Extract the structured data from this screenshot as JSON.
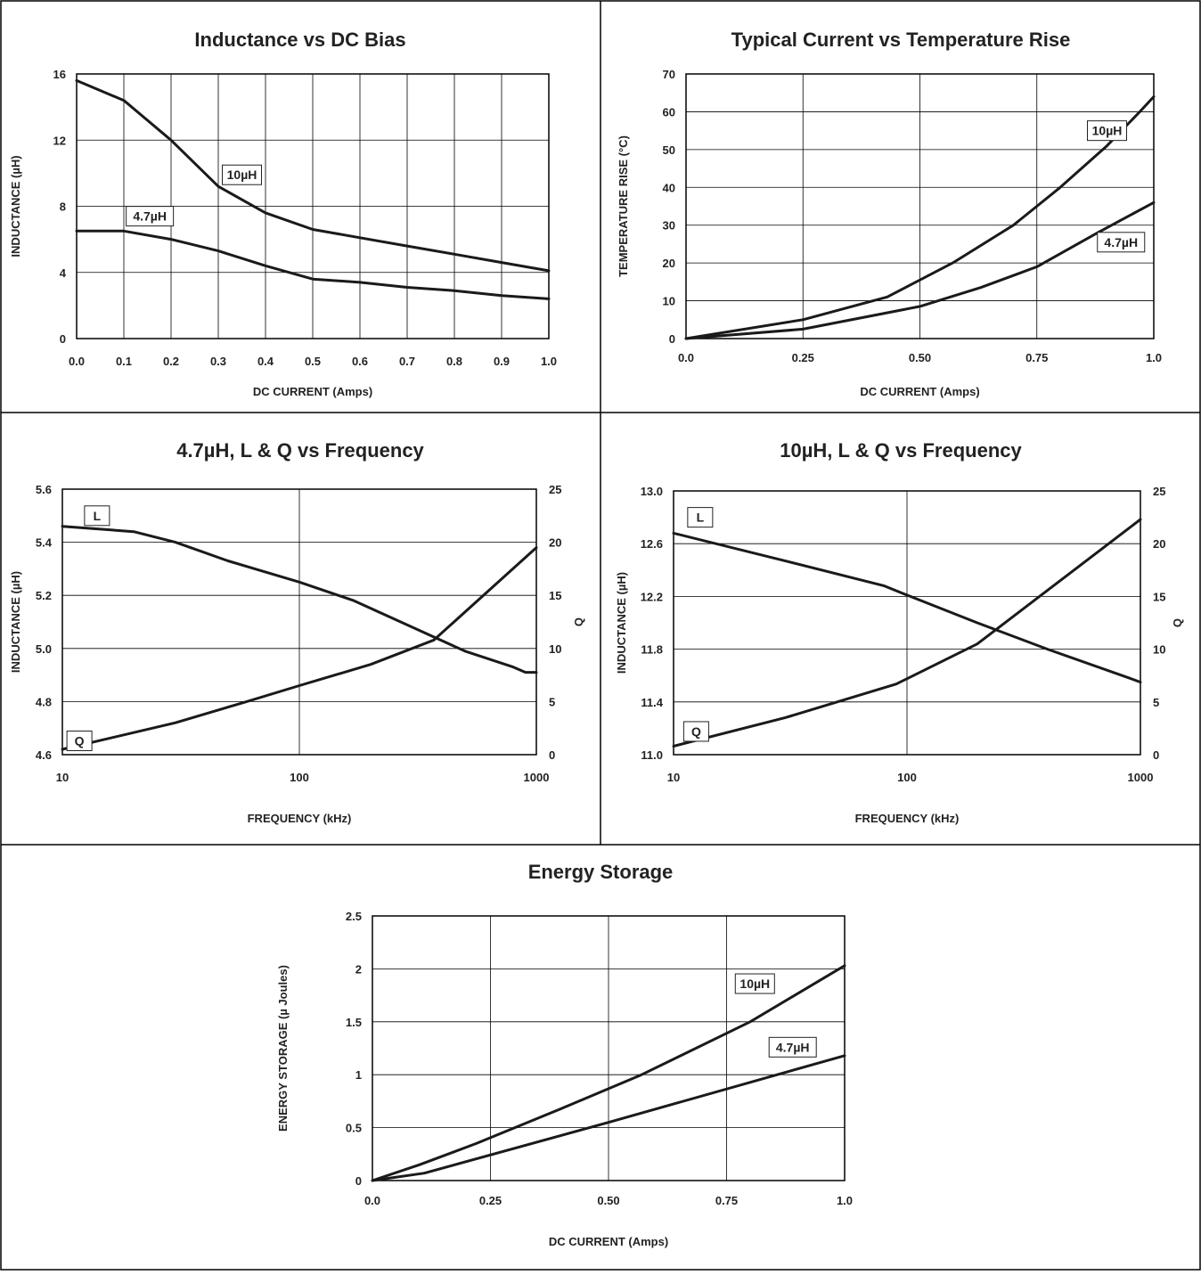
{
  "chart_data": [
    {
      "id": "inductance-vs-dc-bias",
      "type": "line",
      "title": "Inductance vs DC Bias",
      "xlabel": "DC CURRENT (Amps)",
      "ylabel": "INDUCTANCE (µH)",
      "xscale": "linear",
      "xlim": [
        0,
        1.0
      ],
      "ylim": [
        0,
        16
      ],
      "xticks": [
        0,
        0.1,
        0.2,
        0.3,
        0.4,
        0.5,
        0.6,
        0.7,
        0.8,
        0.9,
        1.0
      ],
      "xtick_labels": [
        "0.0",
        "0.1",
        "0.2",
        "0.3",
        "0.4",
        "0.5",
        "0.6",
        "0.7",
        "0.8",
        "0.9",
        "1.0"
      ],
      "yticks": [
        0,
        4,
        8,
        12,
        16
      ],
      "ytick_labels": [
        "0",
        "4",
        "8",
        "12",
        "16"
      ],
      "xgrid": [
        0.1,
        0.2,
        0.3,
        0.4,
        0.5,
        0.6,
        0.7,
        0.8,
        0.9
      ],
      "ygrid": [
        4,
        8,
        12
      ],
      "series": [
        {
          "name": "10µH",
          "x": [
            0,
            0.1,
            0.2,
            0.3,
            0.4,
            0.5,
            0.6,
            0.7,
            0.8,
            0.9,
            1.0
          ],
          "y": [
            15.6,
            14.4,
            12.0,
            9.2,
            7.6,
            6.6,
            6.1,
            5.6,
            5.1,
            4.6,
            4.1
          ],
          "label_at": [
            0.35,
            9.9
          ]
        },
        {
          "name": "4.7µH",
          "x": [
            0,
            0.1,
            0.2,
            0.3,
            0.4,
            0.5,
            0.6,
            0.7,
            0.8,
            0.9,
            1.0
          ],
          "y": [
            6.5,
            6.5,
            6.0,
            5.3,
            4.4,
            3.6,
            3.4,
            3.1,
            2.9,
            2.6,
            2.4
          ],
          "label_at": [
            0.155,
            7.4
          ]
        }
      ]
    },
    {
      "id": "current-vs-temperature-rise",
      "type": "line",
      "title": "Typical Current vs Temperature Rise",
      "xlabel": "DC CURRENT (Amps)",
      "ylabel": "TEMPERATURE RISE (°C)",
      "xscale": "linear",
      "xlim": [
        0,
        1.0
      ],
      "ylim": [
        0,
        70
      ],
      "xticks": [
        0,
        0.25,
        0.5,
        0.75,
        1.0
      ],
      "xtick_labels": [
        "0.0",
        "0.25",
        "0.50",
        "0.75",
        "1.0"
      ],
      "yticks": [
        0,
        10,
        20,
        30,
        40,
        50,
        60,
        70
      ],
      "ytick_labels": [
        "0",
        "10",
        "20",
        "30",
        "40",
        "50",
        "60",
        "70"
      ],
      "xgrid": [
        0.25,
        0.5,
        0.75
      ],
      "ygrid": [
        10,
        20,
        30,
        40,
        50,
        60
      ],
      "series": [
        {
          "name": "10µH",
          "x": [
            0,
            0.25,
            0.43,
            0.57,
            0.7,
            0.8,
            0.9,
            0.97,
            1.0
          ],
          "y": [
            0,
            5,
            11,
            20,
            30,
            40,
            51,
            60,
            64
          ],
          "label_at": [
            0.9,
            55
          ]
        },
        {
          "name": "4.7µH",
          "x": [
            0,
            0.25,
            0.5,
            0.63,
            0.75,
            0.88,
            1.0
          ],
          "y": [
            0,
            2.5,
            8.5,
            13.5,
            19,
            28,
            36
          ],
          "label_at": [
            0.93,
            25.5
          ]
        }
      ]
    },
    {
      "id": "lq-vs-frequency-4-7",
      "type": "line",
      "title": "4.7µH, L & Q vs Frequency",
      "xlabel": "FREQUENCY (kHz)",
      "ylabel": "INDUCTANCE (µH)",
      "y2label": "Q",
      "xscale": "log",
      "xlim": [
        10,
        1000
      ],
      "ylim": [
        4.6,
        5.6
      ],
      "y2lim": [
        0,
        25
      ],
      "xticks": [
        10,
        100,
        1000
      ],
      "xtick_labels": [
        "10",
        "100",
        "1000"
      ],
      "yticks": [
        4.6,
        4.8,
        5.0,
        5.2,
        5.4,
        5.6
      ],
      "ytick_labels": [
        "4.6",
        "4.8",
        "5.0",
        "5.2",
        "5.4",
        "5.6"
      ],
      "y2ticks": [
        0,
        5,
        10,
        15,
        20,
        25
      ],
      "y2tick_labels": [
        "0",
        "5",
        "10",
        "15",
        "20",
        "25"
      ],
      "xgrid": [
        100
      ],
      "ygrid": [
        4.8,
        5.0,
        5.2,
        5.4
      ],
      "series": [
        {
          "name": "L",
          "axis": "left",
          "x": [
            10,
            20,
            30,
            50,
            100,
            170,
            300,
            500,
            800,
            900,
            1000
          ],
          "y": [
            5.46,
            5.44,
            5.4,
            5.33,
            5.25,
            5.18,
            5.08,
            4.99,
            4.93,
            4.91,
            4.91
          ],
          "label_at": [
            14,
            5.5
          ]
        },
        {
          "name": "Q",
          "axis": "right",
          "x": [
            10,
            30,
            60,
            100,
            200,
            370,
            1000
          ],
          "y": [
            0.5,
            3,
            5,
            6.5,
            8.5,
            10.8,
            19.5
          ],
          "label_at": [
            11.8,
            1.3
          ]
        }
      ]
    },
    {
      "id": "lq-vs-frequency-10",
      "type": "line",
      "title": "10µH, L & Q vs Frequency",
      "xlabel": "FREQUENCY (kHz)",
      "ylabel": "INDUCTANCE (µH)",
      "y2label": "Q",
      "xscale": "log",
      "xlim": [
        10,
        1000
      ],
      "ylim": [
        11.0,
        13.0
      ],
      "y2lim": [
        0,
        25
      ],
      "xticks": [
        10,
        100,
        1000
      ],
      "xtick_labels": [
        "10",
        "100",
        "1000"
      ],
      "yticks": [
        11.0,
        11.4,
        11.8,
        12.2,
        12.6,
        13.0
      ],
      "ytick_labels": [
        "11.0",
        "11.4",
        "11.8",
        "12.2",
        "12.6",
        "13.0"
      ],
      "y2ticks": [
        0,
        5,
        10,
        15,
        20,
        25
      ],
      "y2tick_labels": [
        "0",
        "5",
        "10",
        "15",
        "20",
        "25"
      ],
      "xgrid": [
        100
      ],
      "ygrid": [
        11.4,
        11.8,
        12.2,
        12.6
      ],
      "series": [
        {
          "name": "L",
          "axis": "left",
          "x": [
            10,
            30,
            80,
            100,
            200,
            400,
            900,
            1000
          ],
          "y": [
            12.68,
            12.47,
            12.28,
            12.21,
            12.0,
            11.8,
            11.58,
            11.55
          ],
          "label_at": [
            13,
            12.8
          ]
        },
        {
          "name": "Q",
          "axis": "right",
          "x": [
            10,
            30,
            90,
            200,
            1000
          ],
          "y": [
            0.8,
            3.5,
            6.7,
            10.5,
            22.3
          ],
          "label_at": [
            12.5,
            2.2
          ]
        }
      ]
    },
    {
      "id": "energy-storage",
      "type": "line",
      "title": "Energy Storage",
      "xlabel": "DC CURRENT (Amps)",
      "ylabel": "ENERGY STORAGE (µ Joules)",
      "xscale": "linear",
      "xlim": [
        0,
        1.0
      ],
      "ylim": [
        0,
        2.5
      ],
      "xticks": [
        0,
        0.25,
        0.5,
        0.75,
        1.0
      ],
      "xtick_labels": [
        "0.0",
        "0.25",
        "0.50",
        "0.75",
        "1.0"
      ],
      "yticks": [
        0,
        0.5,
        1,
        1.5,
        2,
        2.5
      ],
      "ytick_labels": [
        "0",
        "0.5",
        "1",
        "1.5",
        "2",
        "2.5"
      ],
      "xgrid": [
        0.25,
        0.5,
        0.75
      ],
      "ygrid": [
        0.5,
        1,
        1.5,
        2
      ],
      "series": [
        {
          "name": "10µH",
          "x": [
            0,
            0.1,
            0.22,
            0.4,
            0.57,
            0.8,
            1.0
          ],
          "y": [
            0,
            0.15,
            0.35,
            0.68,
            1.0,
            1.5,
            2.03
          ],
          "label_at": [
            0.81,
            1.86
          ]
        },
        {
          "name": "4.7µH",
          "x": [
            0,
            0.11,
            0.5,
            1.0
          ],
          "y": [
            0,
            0.07,
            0.55,
            1.18
          ],
          "label_at": [
            0.89,
            1.26
          ]
        }
      ]
    }
  ]
}
